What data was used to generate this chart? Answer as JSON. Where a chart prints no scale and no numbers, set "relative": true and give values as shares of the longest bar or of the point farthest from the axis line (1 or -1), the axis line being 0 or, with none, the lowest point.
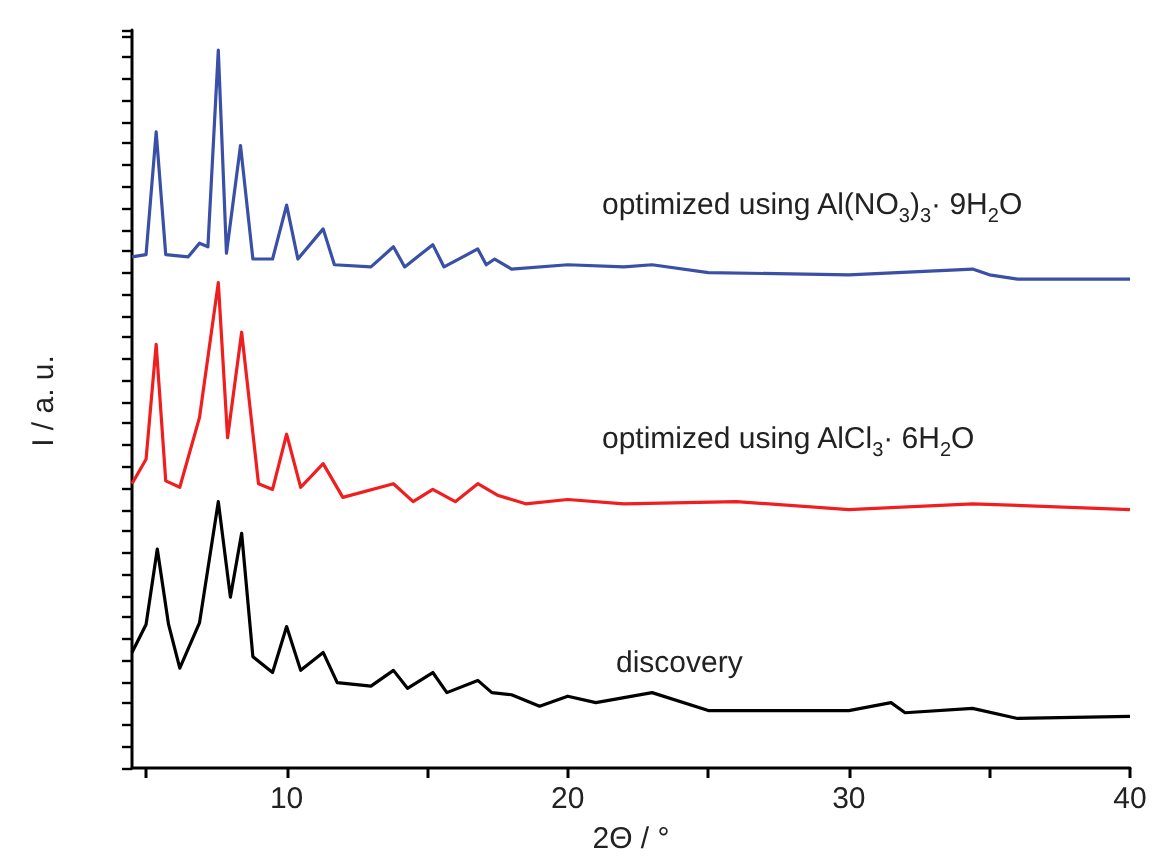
{
  "chart_data": {
    "type": "line",
    "relative": true,
    "tick_labels": "x",
    "xlabel": "2Θ / °",
    "ylabel": "I / a. u.",
    "xlim": [
      4.5,
      40
    ],
    "xticks": [
      {
        "value": 5,
        "label": null
      },
      10,
      {
        "value": 15,
        "label": null
      },
      20,
      {
        "value": 25,
        "label": null
      },
      30,
      {
        "value": 35,
        "label": null
      },
      40
    ],
    "series": [
      {
        "name": "optimized using Al(NO$_{3}$)$_{3}$· 9H$_{2}$O",
        "color": "#3a4fa6",
        "x": [
          4.5,
          5.0,
          5.36,
          5.7,
          6.5,
          6.9,
          7.2,
          7.57,
          7.86,
          8.36,
          8.8,
          9.5,
          10.0,
          10.4,
          11.3,
          11.7,
          13.0,
          13.8,
          14.2,
          15.2,
          15.6,
          16.8,
          17.1,
          17.4,
          18,
          20,
          22,
          23,
          25,
          30,
          34.4,
          35,
          36,
          40
        ],
        "values": [
          0.712,
          0.715,
          0.886,
          0.715,
          0.712,
          0.731,
          0.726,
          1,
          0.717,
          0.867,
          0.709,
          0.709,
          0.784,
          0.709,
          0.751,
          0.701,
          0.698,
          0.726,
          0.698,
          0.729,
          0.698,
          0.723,
          0.701,
          0.709,
          0.695,
          0.701,
          0.698,
          0.701,
          0.69,
          0.687,
          0.695,
          0.687,
          0.681,
          0.681
        ]
      },
      {
        "name": "optimized using AlCl$_{3}$· 6H$_{2}$O",
        "color": "#f01e1e",
        "x": [
          4.5,
          5.0,
          5.36,
          5.7,
          6.2,
          6.9,
          7.57,
          7.9,
          8.4,
          9.0,
          9.5,
          10.0,
          10.5,
          11.3,
          12,
          13.8,
          14.5,
          15.2,
          16,
          16.8,
          17.5,
          18.5,
          20,
          22,
          26,
          30,
          34.4,
          40
        ],
        "values": [
          0.396,
          0.43,
          0.59,
          0.4,
          0.391,
          0.488,
          0.676,
          0.46,
          0.607,
          0.396,
          0.388,
          0.465,
          0.391,
          0.424,
          0.377,
          0.396,
          0.371,
          0.388,
          0.371,
          0.396,
          0.38,
          0.368,
          0.374,
          0.368,
          0.371,
          0.36,
          0.368,
          0.36
        ]
      },
      {
        "name": "discovery",
        "color": "#000000",
        "x": [
          4.5,
          5.0,
          5.4,
          5.8,
          6.2,
          6.9,
          7.57,
          8.0,
          8.4,
          8.8,
          9.5,
          10.0,
          10.5,
          11.3,
          11.8,
          13.0,
          13.8,
          14.3,
          15.2,
          15.7,
          16.8,
          17.3,
          18,
          19,
          20,
          21,
          23,
          25,
          30,
          31.5,
          32,
          34.4,
          36,
          40
        ],
        "values": [
          0.161,
          0.2,
          0.305,
          0.2,
          0.139,
          0.202,
          0.371,
          0.238,
          0.327,
          0.155,
          0.133,
          0.197,
          0.136,
          0.161,
          0.119,
          0.114,
          0.136,
          0.111,
          0.133,
          0.105,
          0.122,
          0.105,
          0.102,
          0.086,
          0.1,
          0.091,
          0.105,
          0.08,
          0.08,
          0.091,
          0.077,
          0.083,
          0.069,
          0.072
        ]
      }
    ]
  }
}
